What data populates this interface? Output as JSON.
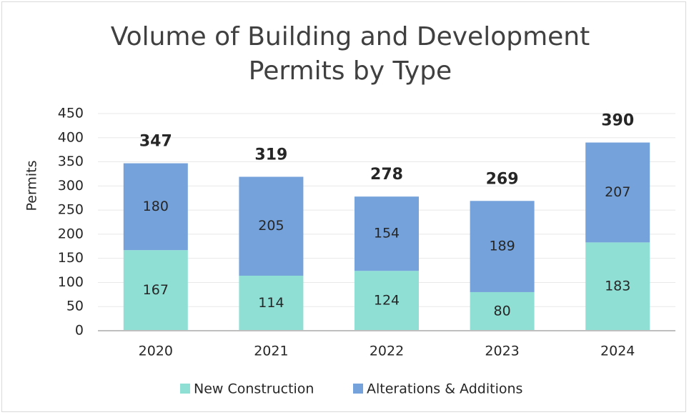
{
  "chart_data": {
    "type": "stacked_bar",
    "title": "Volume of Building and Development\nPermits by Type",
    "y_label": "Permits",
    "categories": [
      "2020",
      "2021",
      "2022",
      "2023",
      "2024"
    ],
    "series": [
      {
        "name": "New Construction",
        "color": "#8fdfd5",
        "values": [
          167,
          114,
          124,
          80,
          183
        ]
      },
      {
        "name": "Alterations & Additions",
        "color": "#75a2da",
        "values": [
          180,
          205,
          154,
          189,
          207
        ]
      }
    ],
    "totals": [
      347,
      319,
      278,
      269,
      390
    ],
    "ylim": [
      0,
      450
    ],
    "yticks": [
      0,
      50,
      100,
      150,
      200,
      250,
      300,
      350,
      400,
      450
    ],
    "grid": true
  }
}
